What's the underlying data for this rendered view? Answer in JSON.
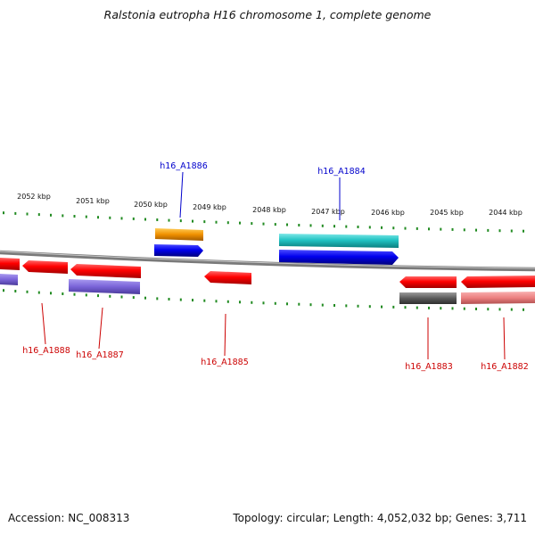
{
  "title": "Ralstonia eutropha H16 chromosome 1, complete genome",
  "footer": {
    "accession": "Accession: NC_008313",
    "summary": "Topology: circular; Length: 4,052,032 bp; Genes: 3,711"
  },
  "scale_labels": [
    "2052 kbp",
    "2051 kbp",
    "2050 kbp",
    "2049 kbp",
    "2048 kbp",
    "2047 kbp",
    "2046 kbp",
    "2045 kbp",
    "2044 kbp"
  ],
  "gene_labels_top": [
    "h16_A1886",
    "h16_A1884"
  ],
  "gene_labels_bottom": [
    "h16_A1888",
    "h16_A1887",
    "h16_A1885",
    "h16_A1883",
    "h16_A1882"
  ],
  "colors": {
    "forward_label": "#0000cc",
    "reverse_label": "#cc0000",
    "tick": "#228b22",
    "backbone": "#808080"
  }
}
